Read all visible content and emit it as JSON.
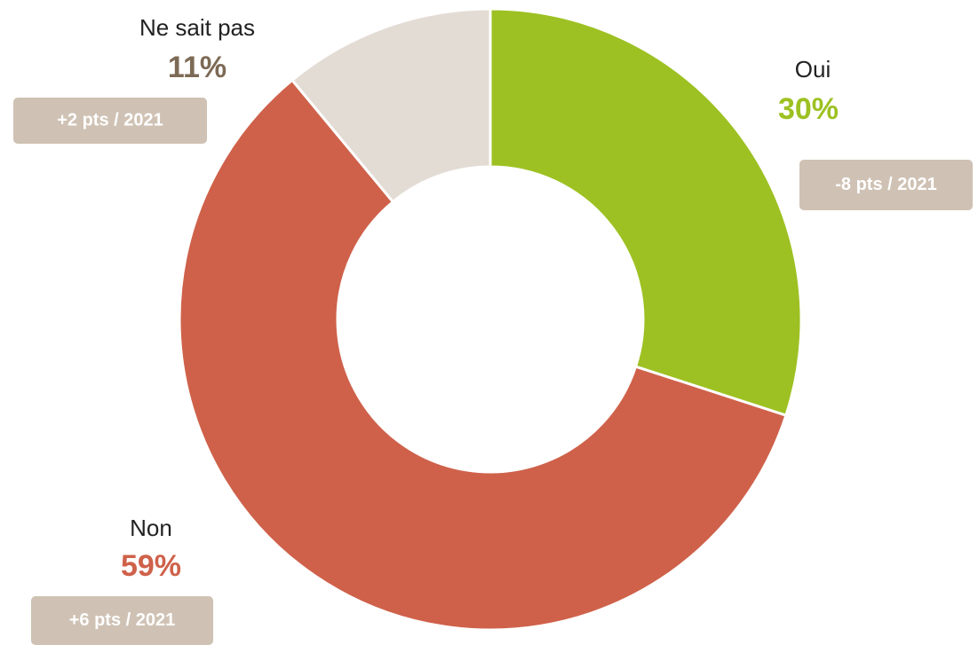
{
  "chart_data": {
    "type": "pie",
    "donut": true,
    "categories": [
      "Oui",
      "Non",
      "Ne sait pas"
    ],
    "values": [
      30,
      59,
      11
    ],
    "value_labels": [
      "30%",
      "59%",
      "11%"
    ],
    "colors": [
      "#9dc122",
      "#cf614a",
      "#e3dcd5"
    ],
    "value_label_colors": [
      "#9dc122",
      "#cf614a",
      "#7d6a55"
    ],
    "annotations": [
      "-8 pts / 2021",
      "+6 pts / 2021",
      "+2 pts / 2021"
    ]
  }
}
